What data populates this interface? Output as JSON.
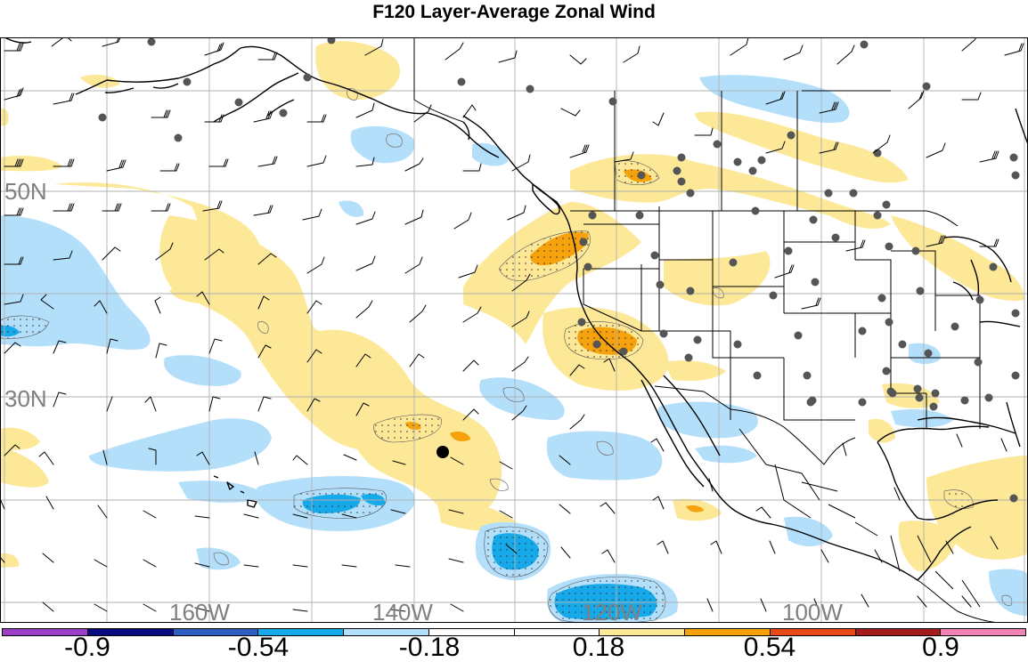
{
  "title": "F120 Layer-Average Zonal Wind",
  "lat_labels": [
    "50N",
    "30N"
  ],
  "lon_labels": [
    "160W",
    "140W",
    "120W",
    "100W"
  ],
  "colorbar": {
    "colors": [
      "#9b3fc9",
      "#0a0a80",
      "#2f5ec2",
      "#16aaeb",
      "#b3dffb",
      "#ffffff",
      "#ffffff",
      "#fde898",
      "#f5a20c",
      "#e84a17",
      "#a31b1b",
      "#f184b4"
    ],
    "tick_labels": [
      "-0.9",
      "-0.54",
      "-0.18",
      "0.18",
      "0.54",
      "0.9"
    ]
  },
  "legend_icons": {
    "station": "station-dot-icon",
    "barb": "wind-barb-icon",
    "marker": "point-marker-icon"
  }
}
